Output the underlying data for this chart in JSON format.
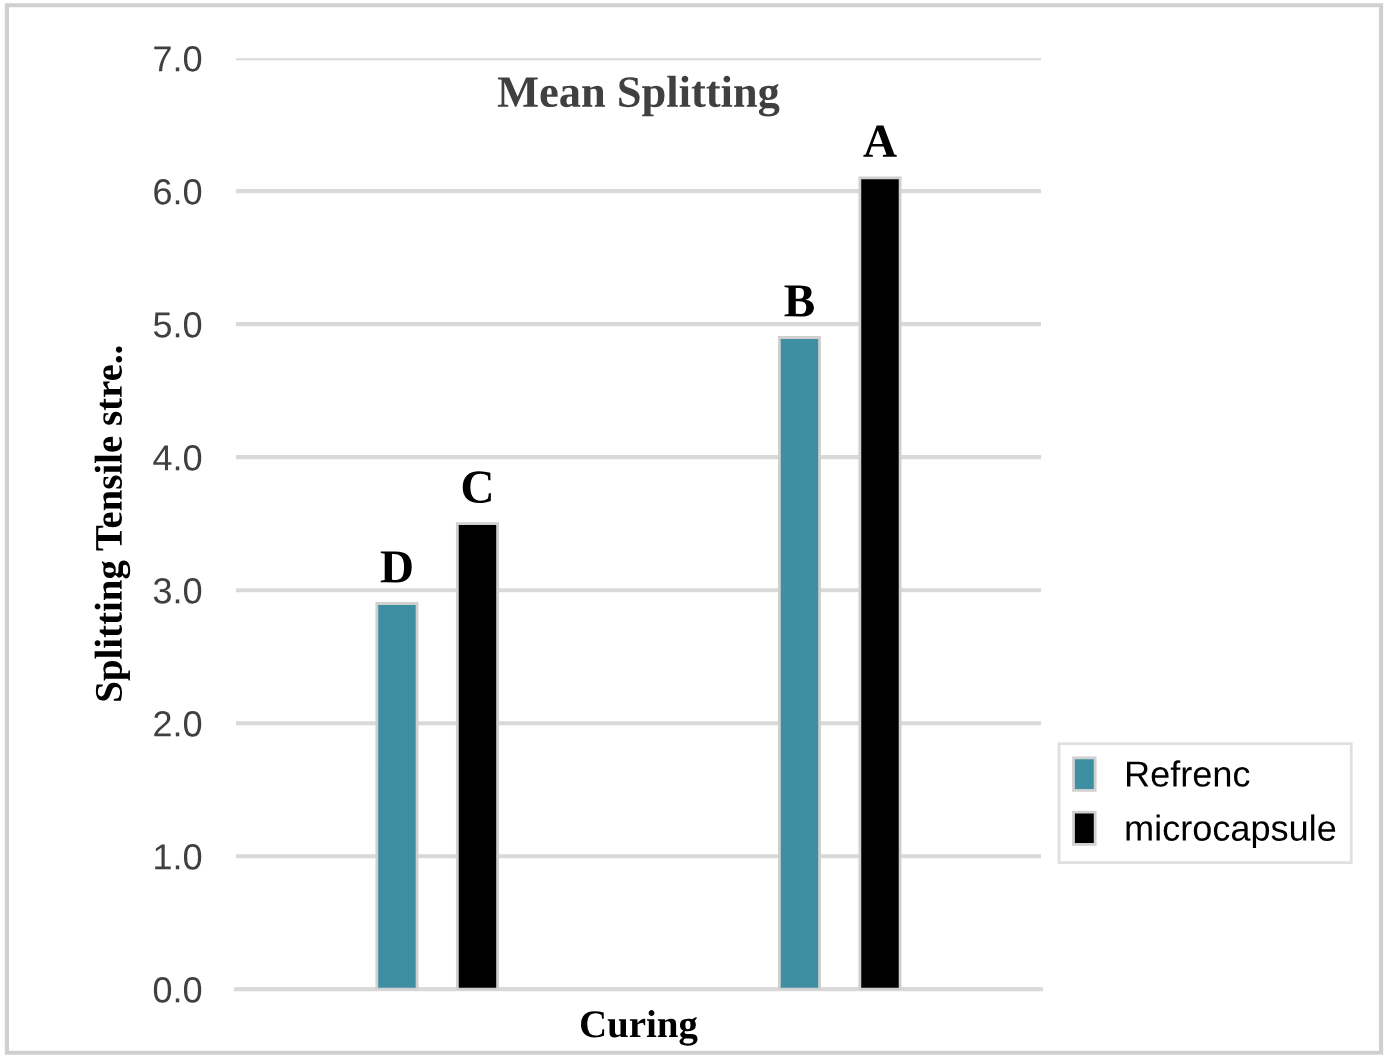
{
  "chart_data": {
    "type": "bar",
    "title": "Mean Splitting",
    "xlabel": "Curing",
    "ylabel": "Splitting Tensile stre..",
    "categories": [
      null,
      null
    ],
    "series": [
      {
        "name": "Refrenc",
        "color": "#3f8fa3",
        "values": [
          2.9,
          4.9
        ],
        "value_labels": [
          "D",
          "B"
        ]
      },
      {
        "name": "microcapsule",
        "color": "#000000",
        "values": [
          3.5,
          6.1
        ],
        "value_labels": [
          "C",
          "A"
        ]
      }
    ],
    "ylim": [
      0,
      7
    ],
    "yticks": [
      {
        "value": 0,
        "label": "0.0"
      },
      {
        "value": 1,
        "label": "1.0"
      },
      {
        "value": 2,
        "label": "2.0"
      },
      {
        "value": 3,
        "label": "3.0"
      },
      {
        "value": 4,
        "label": "4.0"
      },
      {
        "value": 5,
        "label": "5.0"
      },
      {
        "value": 6,
        "label": "6.0"
      },
      {
        "value": 7,
        "label": "7.0"
      }
    ],
    "grid": "y",
    "legend": "right"
  }
}
